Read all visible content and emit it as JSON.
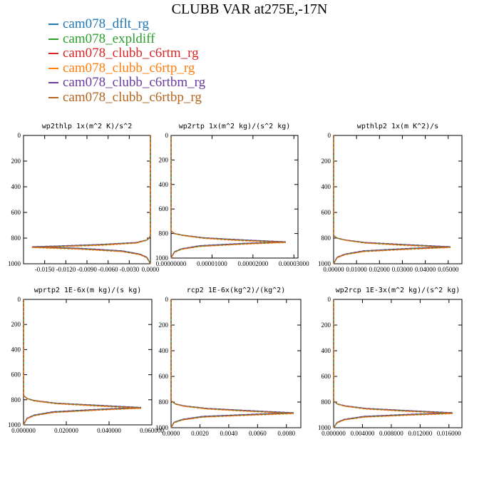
{
  "title": "CLUBB VAR at275E,-17N",
  "legend": [
    {
      "label": "cam078_dflt_rg",
      "color": "#1f77b4"
    },
    {
      "label": "cam078_expldiff",
      "color": "#2ca02c"
    },
    {
      "label": "cam078_clubb_c6rtm_rg",
      "color": "#d62728"
    },
    {
      "label": "cam078_clubb_c6rtp_rg",
      "color": "#ff7f0e"
    },
    {
      "label": "cam078_clubb_c6rtbm_rg",
      "color": "#6a3d9a"
    },
    {
      "label": "cam078_clubb_c6rtbp_rg",
      "color": "#b5651d"
    }
  ],
  "chart_data": [
    {
      "type": "line",
      "title": "wp2thlp  1x(m^2 K)/s^2",
      "xlim": [
        -0.018,
        0.0
      ],
      "ylim": [
        1000,
        0
      ],
      "xticks": [
        "-0.0150",
        "-0.0120",
        "-0.0090",
        "-0.0060",
        "-0.0030",
        "0.0000"
      ],
      "xtick_values": [
        -0.015,
        -0.012,
        -0.009,
        -0.006,
        -0.003,
        0.0
      ],
      "yticks": [
        "0",
        "200",
        "400",
        "600",
        "800",
        "1000"
      ],
      "x": [
        0.0,
        0.0,
        0.0,
        0.0,
        0.0,
        -0.0002,
        -0.0005,
        -0.002,
        -0.007,
        -0.013,
        -0.0168,
        -0.01,
        -0.004,
        -0.0015,
        -0.0005,
        0.0
      ],
      "series": [
        {
          "values": [
            0,
            200,
            400,
            600,
            780,
            800,
            815,
            835,
            850,
            862,
            868,
            880,
            900,
            925,
            950,
            1000
          ]
        },
        {
          "values": [
            0,
            200,
            400,
            600,
            780,
            800,
            815,
            836,
            852,
            864,
            871,
            883,
            903,
            927,
            952,
            1000
          ]
        },
        {
          "values": [
            0,
            200,
            400,
            600,
            780,
            801,
            816,
            838,
            855,
            866,
            872,
            885,
            905,
            928,
            953,
            1000
          ]
        },
        {
          "values": [
            0,
            200,
            400,
            600,
            780,
            802,
            818,
            840,
            857,
            868,
            874,
            887,
            906,
            930,
            954,
            1000
          ]
        },
        {
          "values": [
            0,
            200,
            400,
            600,
            780,
            799,
            814,
            834,
            849,
            861,
            867,
            879,
            899,
            924,
            949,
            1000
          ]
        },
        {
          "values": [
            0,
            200,
            400,
            600,
            780,
            800,
            815,
            837,
            853,
            865,
            870,
            884,
            904,
            928,
            952,
            1000
          ]
        }
      ]
    },
    {
      "type": "line",
      "title": "wp2rtp  1x(m^2 kg)/(s^2 kg)",
      "xlim": [
        0.0,
        3.1e-05
      ],
      "ylim": [
        1000,
        0
      ],
      "xticks": [
        "0.00000000",
        "0.00001000",
        "0.00002000",
        "0.00003000"
      ],
      "xtick_values": [
        0.0,
        1e-05,
        2e-05,
        3e-05
      ],
      "yticks": [
        "0",
        "200",
        "400",
        "600",
        "800",
        "1000"
      ],
      "x": [
        0.0,
        0.0,
        0.0,
        0.0,
        0.0,
        8e-07,
        3e-06,
        8e-06,
        1.6e-05,
        2.4e-05,
        2.8e-05,
        1.8e-05,
        7e-06,
        2.5e-06,
        8e-07,
        0.0
      ],
      "series": [
        {
          "values": [
            0,
            200,
            400,
            600,
            780,
            800,
            815,
            835,
            850,
            862,
            868,
            880,
            900,
            925,
            950,
            1000
          ]
        },
        {
          "values": [
            0,
            200,
            400,
            600,
            780,
            800,
            815,
            836,
            852,
            864,
            871,
            883,
            903,
            927,
            952,
            1000
          ]
        },
        {
          "values": [
            0,
            200,
            400,
            600,
            780,
            801,
            816,
            838,
            855,
            866,
            872,
            885,
            905,
            928,
            953,
            1000
          ]
        },
        {
          "values": [
            0,
            200,
            400,
            600,
            780,
            802,
            818,
            840,
            857,
            868,
            874,
            887,
            906,
            930,
            954,
            1000
          ]
        },
        {
          "values": [
            0,
            200,
            400,
            600,
            780,
            799,
            814,
            834,
            849,
            861,
            867,
            879,
            899,
            924,
            949,
            1000
          ]
        },
        {
          "values": [
            0,
            200,
            400,
            600,
            780,
            800,
            815,
            837,
            853,
            865,
            870,
            884,
            904,
            928,
            952,
            1000
          ]
        }
      ]
    },
    {
      "type": "line",
      "title": "wpthlp2  1x(m K^2)/s",
      "xlim": [
        0.0,
        0.056
      ],
      "ylim": [
        1000,
        0
      ],
      "xticks": [
        "0.00000",
        "0.01000",
        "0.02000",
        "0.03000",
        "0.04000",
        "0.05000"
      ],
      "xtick_values": [
        0.0,
        0.01,
        0.02,
        0.03,
        0.04,
        0.05
      ],
      "yticks": [
        "0",
        "200",
        "400",
        "600",
        "800",
        "1000"
      ],
      "x": [
        0.0,
        0.0,
        0.0,
        0.0,
        0.0,
        0.0015,
        0.005,
        0.014,
        0.03,
        0.044,
        0.051,
        0.034,
        0.013,
        0.005,
        0.0015,
        0.0
      ],
      "series": [
        {
          "values": [
            0,
            200,
            400,
            600,
            780,
            800,
            815,
            835,
            850,
            862,
            868,
            880,
            900,
            925,
            950,
            1000
          ]
        },
        {
          "values": [
            0,
            200,
            400,
            600,
            780,
            800,
            815,
            836,
            852,
            864,
            871,
            883,
            903,
            927,
            952,
            1000
          ]
        },
        {
          "values": [
            0,
            200,
            400,
            600,
            780,
            801,
            816,
            838,
            855,
            866,
            872,
            885,
            905,
            928,
            953,
            1000
          ]
        },
        {
          "values": [
            0,
            200,
            400,
            600,
            780,
            802,
            818,
            840,
            857,
            868,
            874,
            887,
            906,
            930,
            954,
            1000
          ]
        },
        {
          "values": [
            0,
            200,
            400,
            600,
            780,
            799,
            814,
            834,
            849,
            861,
            867,
            879,
            899,
            924,
            949,
            1000
          ]
        },
        {
          "values": [
            0,
            200,
            400,
            600,
            780,
            800,
            815,
            837,
            853,
            865,
            870,
            884,
            904,
            928,
            952,
            1000
          ]
        }
      ]
    },
    {
      "type": "line",
      "title": "wprtp2  1E-6x(m kg)/(s kg)",
      "xlim": [
        0.0,
        0.06
      ],
      "ylim": [
        1000,
        0
      ],
      "xticks": [
        "0.000000",
        "0.020000",
        "0.040000",
        "0.060000"
      ],
      "xtick_values": [
        0.0,
        0.02,
        0.04,
        0.06
      ],
      "yticks": [
        "0",
        "200",
        "400",
        "600",
        "800",
        "1000"
      ],
      "x": [
        0.0,
        0.0,
        0.0,
        0.0,
        0.0,
        0.0016,
        0.005,
        0.015,
        0.032,
        0.047,
        0.055,
        0.037,
        0.014,
        0.005,
        0.0016,
        0.0
      ],
      "series": [
        {
          "values": [
            0,
            200,
            400,
            600,
            765,
            790,
            806,
            827,
            842,
            855,
            862,
            875,
            896,
            922,
            948,
            1000
          ]
        },
        {
          "values": [
            0,
            200,
            400,
            600,
            765,
            790,
            807,
            828,
            844,
            857,
            865,
            878,
            899,
            924,
            950,
            1000
          ]
        },
        {
          "values": [
            0,
            200,
            400,
            600,
            765,
            791,
            808,
            830,
            847,
            859,
            867,
            880,
            901,
            926,
            951,
            1000
          ]
        },
        {
          "values": [
            0,
            200,
            400,
            600,
            765,
            792,
            810,
            832,
            849,
            861,
            869,
            882,
            902,
            928,
            952,
            1000
          ]
        },
        {
          "values": [
            0,
            200,
            400,
            600,
            765,
            789,
            805,
            826,
            841,
            854,
            861,
            874,
            895,
            921,
            947,
            1000
          ]
        },
        {
          "values": [
            0,
            200,
            400,
            600,
            765,
            790,
            807,
            829,
            845,
            858,
            864,
            879,
            900,
            925,
            950,
            1000
          ]
        }
      ]
    },
    {
      "type": "line",
      "title": "rcp2  1E-6x(kg^2)/(kg^2)",
      "xlim": [
        0.0,
        0.009
      ],
      "ylim": [
        1000,
        0
      ],
      "xticks": [
        "0.0000",
        "0.0020",
        "0.0040",
        "0.0060",
        "0.0080"
      ],
      "xtick_values": [
        0.0,
        0.002,
        0.004,
        0.006,
        0.008
      ],
      "yticks": [
        "0",
        "200",
        "400",
        "600",
        "800",
        "1000"
      ],
      "x": [
        0.0,
        0.0,
        0.0,
        0.0,
        0.0,
        0.0003,
        0.0009,
        0.0025,
        0.005,
        0.0072,
        0.0085,
        0.0058,
        0.0022,
        0.0008,
        0.0002,
        0.0
      ],
      "series": [
        {
          "values": [
            0,
            200,
            400,
            600,
            790,
            815,
            830,
            850,
            865,
            877,
            884,
            895,
            912,
            935,
            958,
            1000
          ]
        },
        {
          "values": [
            0,
            200,
            400,
            600,
            790,
            815,
            831,
            851,
            867,
            879,
            887,
            898,
            915,
            937,
            960,
            1000
          ]
        },
        {
          "values": [
            0,
            200,
            400,
            600,
            790,
            816,
            832,
            853,
            869,
            881,
            889,
            900,
            917,
            938,
            961,
            1000
          ]
        },
        {
          "values": [
            0,
            200,
            400,
            600,
            790,
            817,
            834,
            855,
            871,
            883,
            891,
            902,
            918,
            940,
            962,
            1000
          ]
        },
        {
          "values": [
            0,
            200,
            400,
            600,
            790,
            814,
            829,
            849,
            864,
            876,
            883,
            894,
            911,
            934,
            957,
            1000
          ]
        },
        {
          "values": [
            0,
            200,
            400,
            600,
            790,
            815,
            831,
            852,
            868,
            880,
            886,
            899,
            916,
            938,
            960,
            1000
          ]
        }
      ]
    },
    {
      "type": "line",
      "title": "wp2rcp  1E-3x(m^2 kg)/(s^2 kg)",
      "xlim": [
        0.0,
        0.0178
      ],
      "ylim": [
        1000,
        0
      ],
      "xticks": [
        "0.000000",
        "0.004000",
        "0.008000",
        "0.012000",
        "0.016000"
      ],
      "xtick_values": [
        0.0,
        0.004,
        0.008,
        0.012,
        0.016
      ],
      "yticks": [
        "0",
        "200",
        "400",
        "600",
        "800",
        "1000"
      ],
      "x": [
        0.0,
        0.0,
        0.0,
        0.0,
        0.0,
        0.0005,
        0.0016,
        0.0045,
        0.0095,
        0.014,
        0.0165,
        0.011,
        0.0042,
        0.0015,
        0.0005,
        0.0
      ],
      "series": [
        {
          "values": [
            0,
            200,
            400,
            600,
            790,
            815,
            830,
            850,
            865,
            877,
            884,
            895,
            912,
            935,
            958,
            1000
          ]
        },
        {
          "values": [
            0,
            200,
            400,
            600,
            790,
            815,
            831,
            851,
            867,
            879,
            887,
            898,
            915,
            937,
            960,
            1000
          ]
        },
        {
          "values": [
            0,
            200,
            400,
            600,
            790,
            816,
            832,
            853,
            869,
            881,
            889,
            900,
            917,
            938,
            961,
            1000
          ]
        },
        {
          "values": [
            0,
            200,
            400,
            600,
            790,
            817,
            834,
            855,
            871,
            883,
            891,
            902,
            918,
            940,
            962,
            1000
          ]
        },
        {
          "values": [
            0,
            200,
            400,
            600,
            790,
            814,
            829,
            849,
            864,
            876,
            883,
            894,
            911,
            934,
            957,
            1000
          ]
        },
        {
          "values": [
            0,
            200,
            400,
            600,
            790,
            815,
            831,
            852,
            868,
            880,
            886,
            899,
            916,
            938,
            960,
            1000
          ]
        }
      ]
    }
  ]
}
